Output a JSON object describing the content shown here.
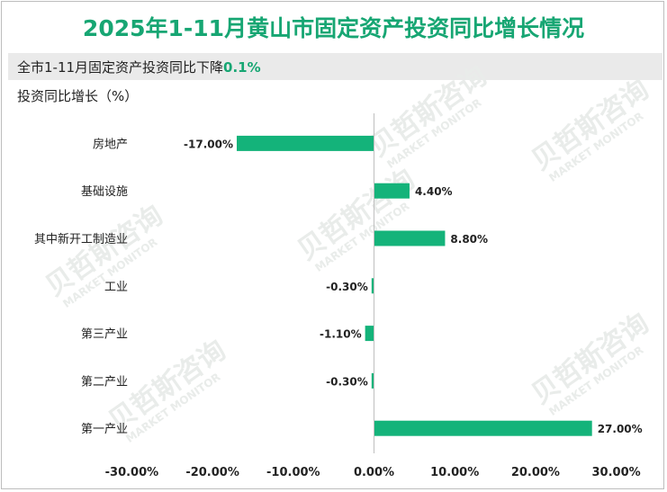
{
  "title": "2025年1-11月黄山市固定资产投资同比增长情况",
  "summary": {
    "prefix": "全市1-11月固定资产投资同比下降",
    "value": "0.1%"
  },
  "ylabel": "投资同比增长（%）",
  "watermark": {
    "cn": "贝哲斯咨询",
    "en": "MARKET MONITOR"
  },
  "colors": {
    "bar": "#14b37a",
    "title": "#17a673"
  },
  "chart_data": {
    "type": "bar",
    "orientation": "horizontal",
    "categories": [
      "房地产",
      "基础设施",
      "其中新开工制造业",
      "工业",
      "第三产业",
      "第二产业",
      "第一产业"
    ],
    "values": [
      -17.0,
      4.4,
      8.8,
      -0.3,
      -1.1,
      -0.3,
      27.0
    ],
    "value_labels": [
      "-17.00%",
      "4.40%",
      "8.80%",
      "-0.30%",
      "-1.10%",
      "-0.30%",
      "27.00%"
    ],
    "xlim": [
      -30,
      30
    ],
    "xticks": [
      -30,
      -20,
      -10,
      0,
      10,
      20,
      30
    ],
    "xtick_labels": [
      "-30.00%",
      "-20.00%",
      "-10.00%",
      "0.00%",
      "10.00%",
      "20.00%",
      "30.00%"
    ],
    "grid": false,
    "legend": "none"
  }
}
